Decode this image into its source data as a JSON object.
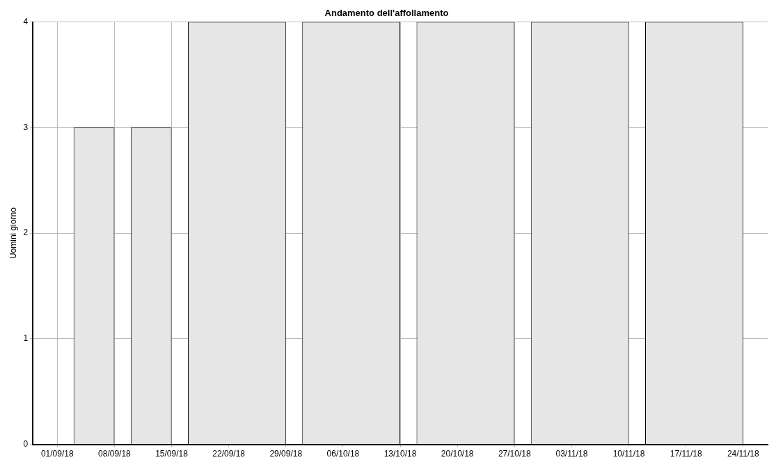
{
  "chart_data": {
    "type": "histogram",
    "title": "Andamento dell'affollamento",
    "ylabel": "Uomini giorno",
    "bins": [
      "--09-03",
      "--09-08",
      "--09-10",
      "--09-15",
      "--09-17",
      "--09-29",
      "--10-01",
      "--10-13",
      "--10-15",
      "--10-27",
      "--10-29",
      "--11-10",
      "--11-12",
      "--11-24"
    ],
    "values": [
      3,
      0,
      3,
      0,
      4,
      0,
      4,
      0,
      4,
      0,
      4,
      0,
      4
    ],
    "color": "#e6e6e6",
    "xlim": [
      "--08-29",
      "--11-27"
    ],
    "xticks": [
      {
        "value": "--09-01",
        "label": "01/09/18"
      },
      {
        "value": "--09-08",
        "label": "08/09/18"
      },
      {
        "value": "--09-15",
        "label": "15/09/18"
      },
      {
        "value": "--09-22",
        "label": "22/09/18"
      },
      {
        "value": "--09-29",
        "label": "29/09/18"
      },
      {
        "value": "--10-06",
        "label": "06/10/18"
      },
      {
        "value": "--10-13",
        "label": "13/10/18"
      },
      {
        "value": "--10-20",
        "label": "20/10/18"
      },
      {
        "value": "--10-27",
        "label": "27/10/18"
      },
      {
        "value": "--11-03",
        "label": "03/11/18"
      },
      {
        "value": "--11-10",
        "label": "10/11/18"
      },
      {
        "value": "--11-17",
        "label": "17/11/18"
      },
      {
        "value": "--11-24",
        "label": "24/11/18"
      }
    ],
    "ylim": [
      0,
      4
    ],
    "yticks": [
      0,
      1,
      2,
      3,
      4
    ],
    "grid": true,
    "legend": false
  }
}
